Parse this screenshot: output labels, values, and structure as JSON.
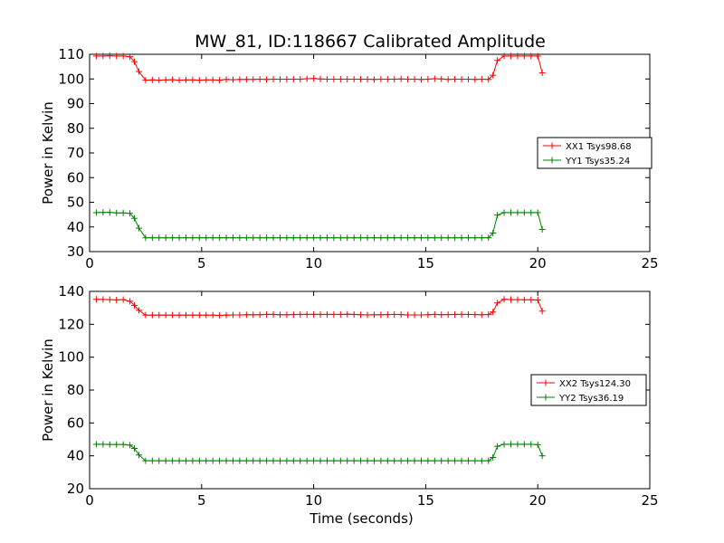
{
  "chart_data": [
    {
      "type": "line",
      "title": "MW_81, ID:118667 Calibrated Amplitude",
      "xlabel": "",
      "ylabel": "Power in Kelvin",
      "xlim": [
        0,
        25
      ],
      "ylim": [
        30,
        110
      ],
      "xticks": [
        0,
        5,
        10,
        15,
        20,
        25
      ],
      "yticks": [
        30,
        40,
        50,
        60,
        70,
        80,
        90,
        100,
        110
      ],
      "grid": false,
      "legend_position": "right",
      "series": [
        {
          "name": "XX1 Tsys98.68",
          "color": "#ff0000",
          "x": [
            0.3,
            0.6,
            0.9,
            1.2,
            1.5,
            1.8,
            2.0,
            2.2,
            2.5,
            2.8,
            3.1,
            3.4,
            3.7,
            4.0,
            4.3,
            4.6,
            4.9,
            5.2,
            5.5,
            5.8,
            6.1,
            6.4,
            6.7,
            7.0,
            7.3,
            7.6,
            7.9,
            8.2,
            8.5,
            8.8,
            9.1,
            9.4,
            9.7,
            10.0,
            10.3,
            10.6,
            10.9,
            11.2,
            11.5,
            11.8,
            12.1,
            12.4,
            12.7,
            13.0,
            13.3,
            13.6,
            13.9,
            14.2,
            14.5,
            14.8,
            15.1,
            15.4,
            15.7,
            16.0,
            16.3,
            16.6,
            16.9,
            17.2,
            17.5,
            17.8,
            18.0,
            18.2,
            18.5,
            18.8,
            19.1,
            19.4,
            19.7,
            20.0,
            20.2
          ],
          "y": [
            109.3,
            109.3,
            109.4,
            109.3,
            109.3,
            109.0,
            107.0,
            103.0,
            99.5,
            99.6,
            99.5,
            99.6,
            99.7,
            99.5,
            99.6,
            99.6,
            99.5,
            99.6,
            99.6,
            99.5,
            99.8,
            99.7,
            99.8,
            99.8,
            99.8,
            99.9,
            99.8,
            99.9,
            99.9,
            99.9,
            99.9,
            99.9,
            100.1,
            100.2,
            100.0,
            99.9,
            99.9,
            99.9,
            99.9,
            99.9,
            99.9,
            99.9,
            99.8,
            99.9,
            99.9,
            99.9,
            100.0,
            99.9,
            99.9,
            99.8,
            99.9,
            100.1,
            100.0,
            99.8,
            99.9,
            99.9,
            99.9,
            99.8,
            99.9,
            99.8,
            101.5,
            107.5,
            109.3,
            109.3,
            109.3,
            109.3,
            109.3,
            109.3,
            102.5
          ]
        },
        {
          "name": "YY1 Tsys35.24",
          "color": "#008000",
          "x": [
            0.3,
            0.6,
            0.9,
            1.2,
            1.5,
            1.8,
            2.0,
            2.2,
            2.5,
            2.8,
            3.1,
            3.4,
            3.7,
            4.0,
            4.3,
            4.6,
            4.9,
            5.2,
            5.5,
            5.8,
            6.1,
            6.4,
            6.7,
            7.0,
            7.3,
            7.6,
            7.9,
            8.2,
            8.5,
            8.8,
            9.1,
            9.4,
            9.7,
            10.0,
            10.3,
            10.6,
            10.9,
            11.2,
            11.5,
            11.8,
            12.1,
            12.4,
            12.7,
            13.0,
            13.3,
            13.6,
            13.9,
            14.2,
            14.5,
            14.8,
            15.1,
            15.4,
            15.7,
            16.0,
            16.3,
            16.6,
            16.9,
            17.2,
            17.5,
            17.8,
            18.0,
            18.2,
            18.5,
            18.8,
            19.1,
            19.4,
            19.7,
            20.0,
            20.2
          ],
          "y": [
            45.8,
            45.9,
            45.9,
            45.7,
            45.7,
            45.5,
            43.5,
            39.5,
            35.6,
            35.6,
            35.6,
            35.6,
            35.6,
            35.6,
            35.6,
            35.6,
            35.6,
            35.6,
            35.6,
            35.6,
            35.6,
            35.6,
            35.6,
            35.6,
            35.6,
            35.6,
            35.6,
            35.6,
            35.6,
            35.6,
            35.6,
            35.6,
            35.6,
            35.6,
            35.6,
            35.6,
            35.6,
            35.6,
            35.6,
            35.6,
            35.6,
            35.6,
            35.6,
            35.6,
            35.6,
            35.6,
            35.6,
            35.6,
            35.6,
            35.6,
            35.6,
            35.6,
            35.6,
            35.6,
            35.6,
            35.6,
            35.6,
            35.6,
            35.6,
            35.6,
            37.5,
            44.8,
            45.8,
            45.8,
            45.8,
            45.8,
            45.8,
            45.8,
            39.0
          ]
        }
      ]
    },
    {
      "type": "line",
      "title": "",
      "xlabel": "Time (seconds)",
      "ylabel": "Power in Kelvin",
      "xlim": [
        0,
        25
      ],
      "ylim": [
        20,
        140
      ],
      "xticks": [
        0,
        5,
        10,
        15,
        20,
        25
      ],
      "yticks": [
        20,
        40,
        60,
        80,
        100,
        120,
        140
      ],
      "grid": false,
      "legend_position": "right",
      "series": [
        {
          "name": "XX2 Tsys124.30",
          "color": "#ff0000",
          "x": [
            0.3,
            0.6,
            0.9,
            1.2,
            1.5,
            1.8,
            2.0,
            2.2,
            2.5,
            2.8,
            3.1,
            3.4,
            3.7,
            4.0,
            4.3,
            4.6,
            4.9,
            5.2,
            5.5,
            5.8,
            6.1,
            6.4,
            6.7,
            7.0,
            7.3,
            7.6,
            7.9,
            8.2,
            8.5,
            8.8,
            9.1,
            9.4,
            9.7,
            10.0,
            10.3,
            10.6,
            10.9,
            11.2,
            11.5,
            11.8,
            12.1,
            12.4,
            12.7,
            13.0,
            13.3,
            13.6,
            13.9,
            14.2,
            14.5,
            14.8,
            15.1,
            15.4,
            15.7,
            16.0,
            16.3,
            16.6,
            16.9,
            17.2,
            17.5,
            17.8,
            18.0,
            18.2,
            18.5,
            18.8,
            19.1,
            19.4,
            19.7,
            20.0,
            20.2
          ],
          "y": [
            135.2,
            135.1,
            135.0,
            134.8,
            135.0,
            134.0,
            131.5,
            128.5,
            125.6,
            125.6,
            125.6,
            125.6,
            125.6,
            125.6,
            125.6,
            125.6,
            125.6,
            125.6,
            125.6,
            125.4,
            125.6,
            125.7,
            125.7,
            125.8,
            125.8,
            125.8,
            126.0,
            126.0,
            125.8,
            125.8,
            125.9,
            126.0,
            126.0,
            126.0,
            126.0,
            126.0,
            126.0,
            126.0,
            126.1,
            126.0,
            125.8,
            125.7,
            125.8,
            125.8,
            125.9,
            126.0,
            125.9,
            125.7,
            125.7,
            125.7,
            125.8,
            126.0,
            125.8,
            125.9,
            126.0,
            126.0,
            126.0,
            125.9,
            125.8,
            125.9,
            127.5,
            133.0,
            135.2,
            135.0,
            135.0,
            134.9,
            134.9,
            134.8,
            128.0
          ]
        },
        {
          "name": "YY2 Tsys36.19",
          "color": "#008000",
          "x": [
            0.3,
            0.6,
            0.9,
            1.2,
            1.5,
            1.8,
            2.0,
            2.2,
            2.5,
            2.8,
            3.1,
            3.4,
            3.7,
            4.0,
            4.3,
            4.6,
            4.9,
            5.2,
            5.5,
            5.8,
            6.1,
            6.4,
            6.7,
            7.0,
            7.3,
            7.6,
            7.9,
            8.2,
            8.5,
            8.8,
            9.1,
            9.4,
            9.7,
            10.0,
            10.3,
            10.6,
            10.9,
            11.2,
            11.5,
            11.8,
            12.1,
            12.4,
            12.7,
            13.0,
            13.3,
            13.6,
            13.9,
            14.2,
            14.5,
            14.8,
            15.1,
            15.4,
            15.7,
            16.0,
            16.3,
            16.6,
            16.9,
            17.2,
            17.5,
            17.8,
            18.0,
            18.2,
            18.5,
            18.8,
            19.1,
            19.4,
            19.7,
            20.0,
            20.2
          ],
          "y": [
            47.0,
            47.0,
            46.9,
            46.9,
            46.9,
            46.5,
            44.5,
            40.5,
            37.0,
            37.0,
            37.0,
            37.0,
            37.0,
            37.0,
            37.0,
            37.0,
            37.0,
            37.0,
            37.0,
            37.0,
            37.0,
            37.0,
            37.0,
            37.0,
            37.0,
            37.0,
            37.0,
            37.0,
            37.0,
            37.0,
            37.0,
            37.0,
            37.0,
            37.0,
            37.0,
            37.0,
            37.0,
            37.0,
            37.0,
            37.0,
            37.0,
            37.0,
            37.0,
            37.0,
            37.0,
            37.0,
            37.0,
            37.0,
            37.0,
            37.0,
            37.0,
            37.0,
            37.0,
            37.0,
            37.0,
            37.0,
            37.0,
            37.0,
            37.0,
            37.0,
            39.0,
            45.8,
            47.0,
            47.0,
            47.0,
            47.0,
            47.0,
            46.8,
            40.0
          ]
        }
      ]
    }
  ]
}
